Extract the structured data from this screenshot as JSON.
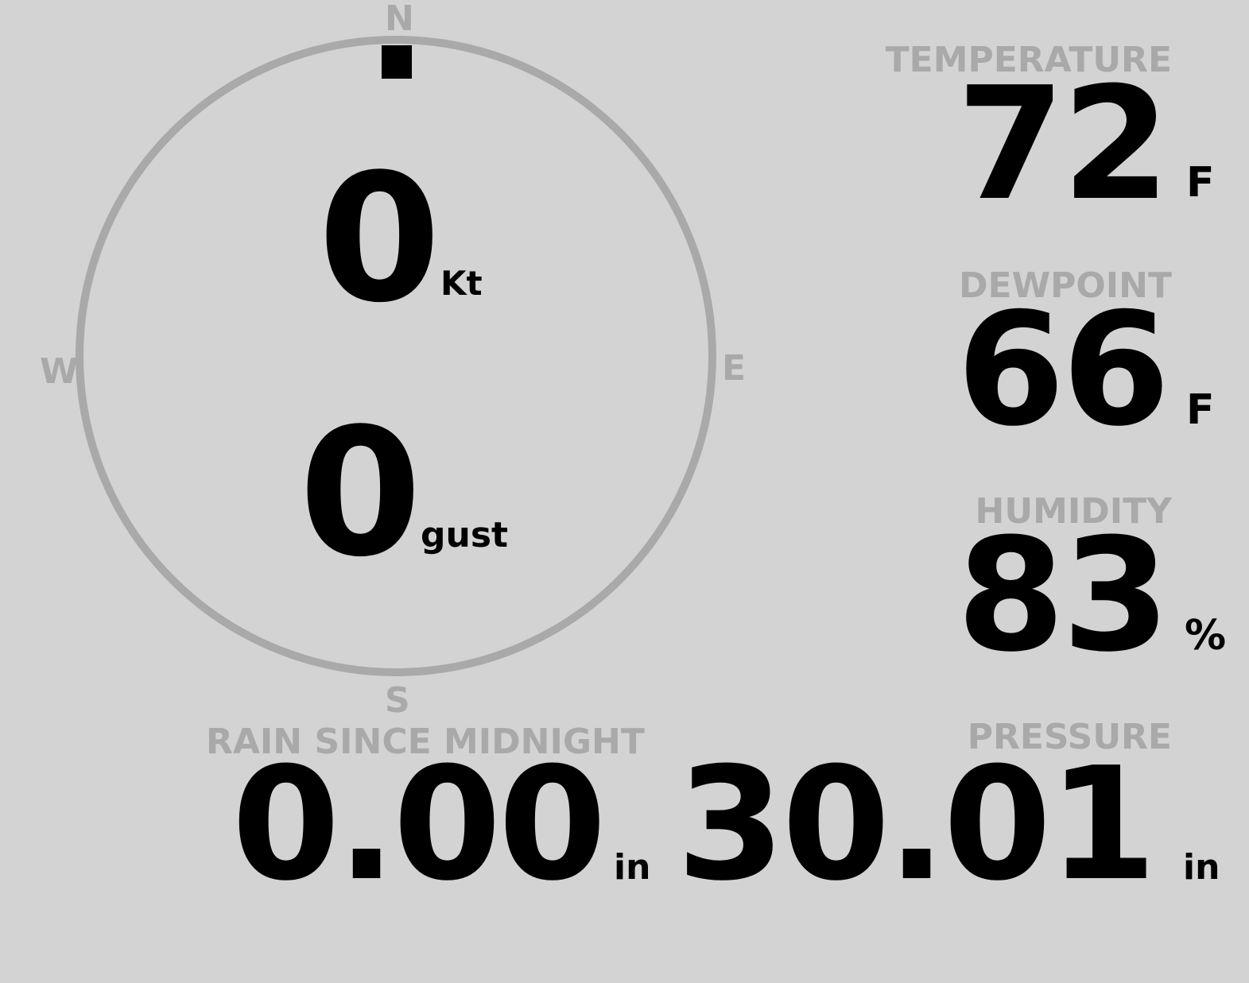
{
  "colors": {
    "background": "#d3d3d3",
    "label": "#a9a9a9",
    "value": "#000000"
  },
  "compass": {
    "n": "N",
    "e": "E",
    "s": "S",
    "w": "W",
    "direction_deg": 0,
    "speed": "0",
    "speed_unit": "Kt",
    "gust": "0",
    "gust_unit": "gust"
  },
  "temperature": {
    "label": "TEMPERATURE",
    "value": "72",
    "unit": "F"
  },
  "dewpoint": {
    "label": "DEWPOINT",
    "value": "66",
    "unit": "F"
  },
  "humidity": {
    "label": "HUMIDITY",
    "value": "83",
    "unit": "%"
  },
  "rain": {
    "label": "RAIN SINCE MIDNIGHT",
    "value": "0.00",
    "unit": "in"
  },
  "pressure": {
    "label": "PRESSURE",
    "value": "30.01",
    "unit": "in"
  }
}
